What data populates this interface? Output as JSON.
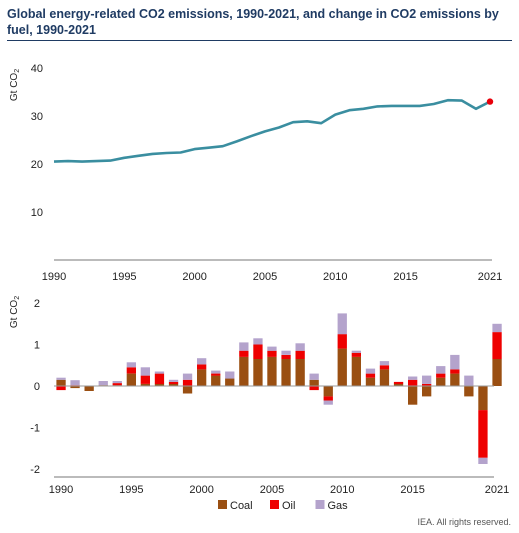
{
  "title": "Global energy-related CO2 emissions, 1990-2021, and change in CO2 emissions by fuel, 1990-2021",
  "source_note": "IEA. All rights reserved.",
  "chart_data": [
    {
      "type": "line",
      "ylabel": "Gt CO2",
      "ylim": [
        0,
        40
      ],
      "yticks": [
        10,
        20,
        30,
        40
      ],
      "xticks": [
        1990,
        1995,
        2000,
        2005,
        2010,
        2015,
        2021
      ],
      "grid": false,
      "line_color": "#3a8ea0",
      "highlight_color": "#e8000b",
      "series": [
        {
          "x": [
            1990,
            1991,
            1992,
            1993,
            1994,
            1995,
            1996,
            1997,
            1998,
            1999,
            2000,
            2001,
            2002,
            2003,
            2004,
            2005,
            2006,
            2007,
            2008,
            2009,
            2010,
            2011,
            2012,
            2013,
            2014,
            2015,
            2016,
            2017,
            2018,
            2019,
            2020,
            2021
          ],
          "y": [
            20.5,
            20.6,
            20.5,
            20.6,
            20.7,
            21.3,
            21.7,
            22.1,
            22.3,
            22.4,
            23.1,
            23.4,
            23.7,
            24.7,
            25.8,
            26.8,
            27.6,
            28.7,
            28.9,
            28.5,
            30.3,
            31.2,
            31.5,
            32.0,
            32.1,
            32.1,
            32.1,
            32.5,
            33.3,
            33.2,
            31.5,
            33.0
          ]
        }
      ],
      "highlight_point": {
        "x": 2021,
        "y": 33.0
      }
    },
    {
      "type": "bar",
      "stacked": true,
      "ylabel": "Gt CO2",
      "ylim": [
        -2,
        2
      ],
      "yticks": [
        -2,
        -1,
        0,
        1,
        2
      ],
      "xticks": [
        1990,
        1995,
        2000,
        2005,
        2010,
        2015,
        2021
      ],
      "legend": "bottom",
      "categories": [
        1990,
        1991,
        1992,
        1993,
        1994,
        1995,
        1996,
        1997,
        1998,
        1999,
        2000,
        2001,
        2002,
        2003,
        2004,
        2005,
        2006,
        2007,
        2008,
        2009,
        2010,
        2011,
        2012,
        2013,
        2014,
        2015,
        2016,
        2017,
        2018,
        2019,
        2020,
        2021
      ],
      "series": [
        {
          "name": "Coal",
          "color": "#9a4f12",
          "values": [
            0.15,
            -0.05,
            -0.12,
            0.02,
            0.02,
            0.3,
            0.05,
            0.05,
            0.05,
            -0.18,
            0.4,
            0.25,
            0.18,
            0.7,
            0.65,
            0.7,
            0.65,
            0.65,
            0.15,
            -0.25,
            0.9,
            0.7,
            0.2,
            0.4,
            0.05,
            -0.45,
            -0.25,
            0.2,
            0.3,
            -0.25,
            -0.58,
            0.65
          ]
        },
        {
          "name": "Oil",
          "color": "#ee0000",
          "values": [
            -0.1,
            0.02,
            0.0,
            0.0,
            0.05,
            0.15,
            0.2,
            0.25,
            0.05,
            0.15,
            0.12,
            0.05,
            0.0,
            0.15,
            0.35,
            0.15,
            0.1,
            0.2,
            -0.1,
            -0.1,
            0.35,
            0.1,
            0.1,
            0.1,
            0.05,
            0.15,
            0.05,
            0.1,
            0.1,
            0.0,
            -1.15,
            0.65
          ]
        },
        {
          "name": "Gas",
          "color": "#b4a3cc",
          "values": [
            0.05,
            0.12,
            0.0,
            0.1,
            0.05,
            0.12,
            0.2,
            0.05,
            0.05,
            0.15,
            0.15,
            0.07,
            0.17,
            0.2,
            0.15,
            0.1,
            0.1,
            0.18,
            0.15,
            -0.1,
            0.5,
            0.05,
            0.12,
            0.1,
            0.0,
            0.08,
            0.2,
            0.18,
            0.35,
            0.25,
            -0.15,
            0.2
          ]
        }
      ]
    }
  ]
}
